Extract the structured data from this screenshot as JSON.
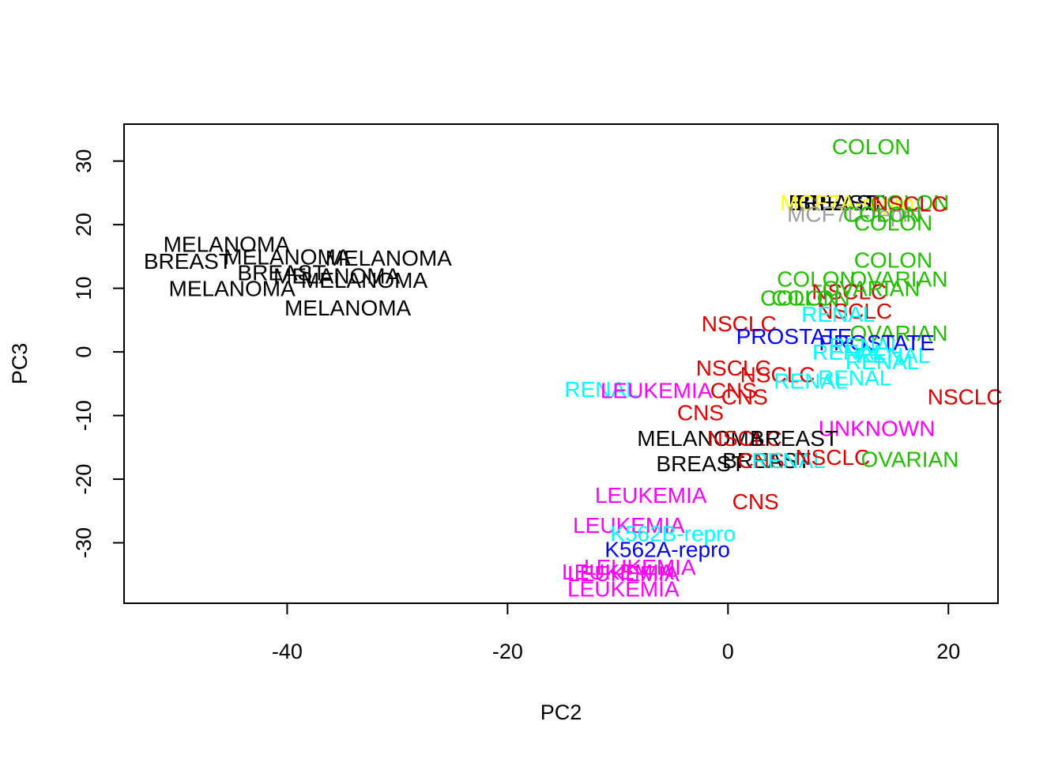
{
  "chart_data": {
    "type": "scatter",
    "title": "",
    "xlabel": "PC2",
    "ylabel": "PC3",
    "xlim": [
      -54.8,
      24.5
    ],
    "ylim": [
      -39.5,
      35.8
    ],
    "xticks": [
      -40,
      -20,
      0,
      20
    ],
    "yticks": [
      -30,
      -20,
      -10,
      0,
      10,
      20,
      30
    ],
    "xtick_labels": [
      "-40",
      "-20",
      "0",
      "20"
    ],
    "ytick_labels": [
      "-30",
      "-20",
      "-10",
      "0",
      "10",
      "20",
      "30"
    ],
    "grid": false,
    "legend": "none",
    "colors": {
      "BREAST": "#000000",
      "MELANOMA": "#000000",
      "CNS": "#DF0000",
      "NSCLC": "#DF0000",
      "COLON": "#22C000",
      "OVARIAN": "#22C000",
      "LEUKEMIA": "#FF00FF",
      "RENAL": "#00FFFF",
      "K562B-repro": "#00FFFF",
      "PROSTATE": "#0000FF",
      "K562A-repro": "#0000FF",
      "UNKNOWN": "#FF00FF",
      "MCF7A-repro": "#FFFF00",
      "MCF7D-repro": "#9E9E9E"
    },
    "points": [
      {
        "label": "COLON",
        "x": 13.0,
        "y": 32.3
      },
      {
        "label": "BREAST",
        "x": 9.5,
        "y": 23.5
      },
      {
        "label": "BREAST",
        "x": 10.2,
        "y": 23.5
      },
      {
        "label": "MCF7A-repro",
        "x": 10.8,
        "y": 23.5
      },
      {
        "label": "COLON",
        "x": 16.5,
        "y": 23.5
      },
      {
        "label": "NSCLC",
        "x": 16.5,
        "y": 23.3
      },
      {
        "label": "MCF7D-repro",
        "x": 11.5,
        "y": 21.7
      },
      {
        "label": "COLON",
        "x": 14.0,
        "y": 21.7
      },
      {
        "label": "COLON",
        "x": 15.0,
        "y": 20.3
      },
      {
        "label": "MELANOMA",
        "x": -45.5,
        "y": 17.0
      },
      {
        "label": "MELANOMA",
        "x": -40.0,
        "y": 15.0
      },
      {
        "label": "MELANOMA",
        "x": -30.8,
        "y": 14.8
      },
      {
        "label": "BREAST",
        "x": -49.0,
        "y": 14.3
      },
      {
        "label": "BREAST",
        "x": -40.5,
        "y": 12.5
      },
      {
        "label": "MELANOMA",
        "x": -35.5,
        "y": 12.0
      },
      {
        "label": "MELANOMA",
        "x": -33.0,
        "y": 11.3
      },
      {
        "label": "MELANOMA",
        "x": -45.0,
        "y": 10.0
      },
      {
        "label": "MELANOMA",
        "x": -34.5,
        "y": 7.0
      },
      {
        "label": "COLON",
        "x": 15.0,
        "y": 14.5
      },
      {
        "label": "COLON",
        "x": 8.0,
        "y": 11.5
      },
      {
        "label": "OVARIAN",
        "x": 15.5,
        "y": 11.5
      },
      {
        "label": "NSCLC",
        "x": 11.0,
        "y": 9.5
      },
      {
        "label": "OVARIAN",
        "x": 13.0,
        "y": 10.0
      },
      {
        "label": "COLON",
        "x": 6.5,
        "y": 8.5
      },
      {
        "label": "COLON",
        "x": 7.5,
        "y": 8.5
      },
      {
        "label": "NSCLC",
        "x": 11.5,
        "y": 6.5
      },
      {
        "label": "RENAL",
        "x": 10.0,
        "y": 6.0
      },
      {
        "label": "NSCLC",
        "x": 1.0,
        "y": 4.5
      },
      {
        "label": "OVARIAN",
        "x": 15.5,
        "y": 3.0
      },
      {
        "label": "PROSTATE",
        "x": 6.0,
        "y": 2.5
      },
      {
        "label": "PROSTATE",
        "x": 13.5,
        "y": 1.5
      },
      {
        "label": "RENAL",
        "x": 12.5,
        "y": 1.0
      },
      {
        "label": "RENAL",
        "x": 11.0,
        "y": 0.0
      },
      {
        "label": "RENAL",
        "x": 15.0,
        "y": -0.5
      },
      {
        "label": "RENAL",
        "x": 14.0,
        "y": -1.5
      },
      {
        "label": "NSCLC",
        "x": 0.5,
        "y": -2.5
      },
      {
        "label": "NSCLC",
        "x": 4.5,
        "y": -3.5
      },
      {
        "label": "RENAL",
        "x": 7.5,
        "y": -4.5
      },
      {
        "label": "RENAL",
        "x": 11.5,
        "y": -4.0
      },
      {
        "label": "NSCLC",
        "x": 21.5,
        "y": -7.0
      },
      {
        "label": "RENAL",
        "x": -11.5,
        "y": -5.8
      },
      {
        "label": "LEUKEMIA",
        "x": -6.5,
        "y": -6.0
      },
      {
        "label": "CNS",
        "x": 0.5,
        "y": -6.0
      },
      {
        "label": "CNS",
        "x": 1.5,
        "y": -7.0
      },
      {
        "label": "CNS",
        "x": -2.5,
        "y": -9.5
      },
      {
        "label": "UNKNOWN",
        "x": 13.5,
        "y": -12.0
      },
      {
        "label": "MELANOMA",
        "x": -2.5,
        "y": -13.5
      },
      {
        "label": "NSCLC",
        "x": 1.5,
        "y": -13.5
      },
      {
        "label": "BREAST",
        "x": 6.0,
        "y": -13.5
      },
      {
        "label": "BREAST",
        "x": -2.5,
        "y": -17.5
      },
      {
        "label": "BREAST",
        "x": 3.5,
        "y": -17.0
      },
      {
        "label": "CNS",
        "x": 3.0,
        "y": -17.0
      },
      {
        "label": "RENAL",
        "x": 5.5,
        "y": -17.0
      },
      {
        "label": "NSCLC",
        "x": 9.5,
        "y": -16.5
      },
      {
        "label": "OVARIAN",
        "x": 16.5,
        "y": -16.8
      },
      {
        "label": "LEUKEMIA",
        "x": -7.0,
        "y": -22.5
      },
      {
        "label": "CNS",
        "x": 2.5,
        "y": -23.5
      },
      {
        "label": "LEUKEMIA",
        "x": -9.0,
        "y": -27.2
      },
      {
        "label": "K562B-repro",
        "x": -5.0,
        "y": -28.5
      },
      {
        "label": "K562A-repro",
        "x": -5.5,
        "y": -31.0
      },
      {
        "label": "LEUKEMIA",
        "x": -8.0,
        "y": -33.8
      },
      {
        "label": "LEUKEMIA",
        "x": -9.5,
        "y": -34.8
      },
      {
        "label": "LEUKEMIA",
        "x": -10.0,
        "y": -34.5
      },
      {
        "label": "LEUKEMIA",
        "x": -9.5,
        "y": -37.2
      }
    ]
  }
}
